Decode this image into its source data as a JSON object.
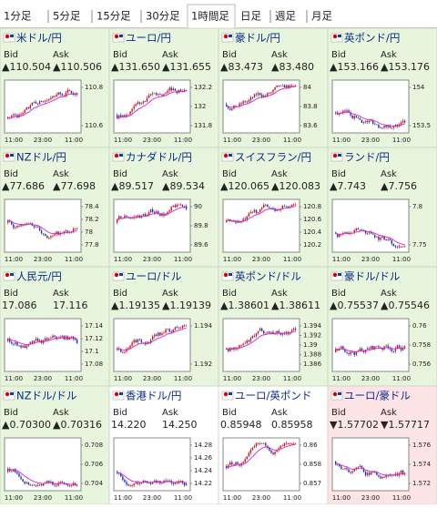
{
  "tabs": [
    "1分足",
    "5分足",
    "15分足",
    "30分足",
    "1時間足",
    "日足",
    "週足",
    "月足"
  ],
  "selected_tab": 4,
  "tiles": [
    {
      "name": "米ドル/円",
      "bid_label": "Bid",
      "ask_label": "Ask",
      "bid": "▲110.504",
      "ask": "▲110.506",
      "yticks": [
        "110.8",
        "110.6"
      ],
      "xticks": [
        "11:00",
        "23:00",
        "11:00"
      ],
      "bg": "#e6f5dc"
    },
    {
      "name": "ユーロ/円",
      "bid_label": "Bid",
      "ask_label": "Ask",
      "bid": "▲131.650",
      "ask": "▲131.655",
      "yticks": [
        "132.2",
        "132",
        "131.8"
      ],
      "xticks": [
        "11:00",
        "23:00",
        "11:00"
      ],
      "bg": "#e6f5dc"
    },
    {
      "name": "豪ドル/円",
      "bid_label": "Bid",
      "ask_label": "Ask",
      "bid": "▲83.473",
      "ask": "▲83.480",
      "yticks": [
        "84",
        "83.8",
        "83.6"
      ],
      "xticks": [
        "11:00",
        "23:00",
        "11:00"
      ],
      "bg": "#e6f5dc"
    },
    {
      "name": "英ポンド/円",
      "bid_label": "Bid",
      "ask_label": "Ask",
      "bid": "▲153.166",
      "ask": "▲153.176",
      "yticks": [
        "154",
        "153.5"
      ],
      "xticks": [
        "11:00",
        "23:00",
        "11:00"
      ],
      "bg": "#e6f5dc"
    },
    {
      "name": "NZドル/円",
      "bid_label": "Bid",
      "ask_label": "Ask",
      "bid": "▲77.686",
      "ask": "▲77.698",
      "yticks": [
        "78.4",
        "78.2",
        "78",
        "77.8"
      ],
      "xticks": [
        "11:00",
        "23:00",
        "11:00"
      ],
      "bg": "#e6f5dc"
    },
    {
      "name": "カナダドル/円",
      "bid_label": "Bid",
      "ask_label": "Ask",
      "bid": "▲89.517",
      "ask": "▲89.534",
      "yticks": [
        "90",
        "89.8",
        "89.6"
      ],
      "xticks": [
        "11:00",
        "23:00",
        "11:00"
      ],
      "bg": "#e6f5dc"
    },
    {
      "name": "スイスフラン/円",
      "bid_label": "Bid",
      "ask_label": "Ask",
      "bid": "▲120.065",
      "ask": "▲120.083",
      "yticks": [
        "120.8",
        "120.6",
        "120.4",
        "120.2"
      ],
      "xticks": [
        "11:00",
        "23:00",
        "11:00"
      ],
      "bg": "#e6f5dc"
    },
    {
      "name": "ランド/円",
      "bid_label": "Bid",
      "ask_label": "Ask",
      "bid": "▲7.743",
      "ask": "▲7.756",
      "yticks": [
        "7.8",
        "7.75"
      ],
      "xticks": [
        "11:00",
        "23:00",
        "11:00"
      ],
      "bg": "#e6f5dc"
    },
    {
      "name": "人民元/円",
      "bid_label": "Bid",
      "ask_label": "Ask",
      "bid": "17.086",
      "ask": "17.116",
      "yticks": [
        "17.14",
        "17.12",
        "17.1",
        "17.08"
      ],
      "xticks": [
        "11:00",
        "23:00",
        "11:00"
      ],
      "bg": "#e6f5dc"
    },
    {
      "name": "ユーロ/ドル",
      "bid_label": "Bid",
      "ask_label": "Ask",
      "bid": "▲1.19135",
      "ask": "▲1.19139",
      "yticks": [
        "1.194",
        "1.192"
      ],
      "xticks": [
        "11:00",
        "23:00",
        "11:00"
      ],
      "bg": "#e6f5dc"
    },
    {
      "name": "英ポンド/ドル",
      "bid_label": "Bid",
      "ask_label": "Ask",
      "bid": "▲1.38601",
      "ask": "▲1.38611",
      "yticks": [
        "1.394",
        "1.392",
        "1.39",
        "1.388",
        "1.386"
      ],
      "xticks": [
        "11:00",
        "23:00",
        "11:00"
      ],
      "bg": "#e6f5dc"
    },
    {
      "name": "豪ドル/ドル",
      "bid_label": "Bid",
      "ask_label": "Ask",
      "bid": "▲0.75537",
      "ask": "▲0.75546",
      "yticks": [
        "0.76",
        "0.758",
        "0.756"
      ],
      "xticks": [
        "11:00",
        "23:00",
        "11:00"
      ],
      "bg": "#e6f5dc"
    },
    {
      "name": "NZドル/ドル",
      "bid_label": "Bid",
      "ask_label": "Ask",
      "bid": "▲0.70300",
      "ask": "▲0.70316",
      "yticks": [
        "0.708",
        "0.706",
        "0.704"
      ],
      "xticks": [
        "11:00",
        "23:00",
        "11:00"
      ],
      "bg": "#e6f5dc"
    },
    {
      "name": "香港ドル/円",
      "bid_label": "Bid",
      "ask_label": "Ask",
      "bid": "14.220",
      "ask": "14.250",
      "yticks": [
        "14.28",
        "14.26",
        "14.24",
        "14.22"
      ],
      "xticks": [
        "11:00",
        "23:00",
        "11:00"
      ],
      "bg": "#ffffff"
    },
    {
      "name": "ユーロ/英ポンド",
      "bid_label": "Bid",
      "ask_label": "Ask",
      "bid": "0.85948",
      "ask": "0.85958",
      "yticks": [
        "0.86",
        "0.858",
        "0.857"
      ],
      "xticks": [
        "11:00",
        "23:00",
        "11:00"
      ],
      "bg": "#ffffff"
    },
    {
      "name": "ユーロ/豪ドル",
      "bid_label": "Bid",
      "ask_label": "Ask",
      "bid": "▼1.57702",
      "ask": "▼1.57717",
      "yticks": [
        "1.576",
        "1.574",
        "1.572"
      ],
      "xticks": [
        "11:00",
        "23:00",
        "11:00"
      ],
      "bg": "#fde4e6"
    }
  ]
}
